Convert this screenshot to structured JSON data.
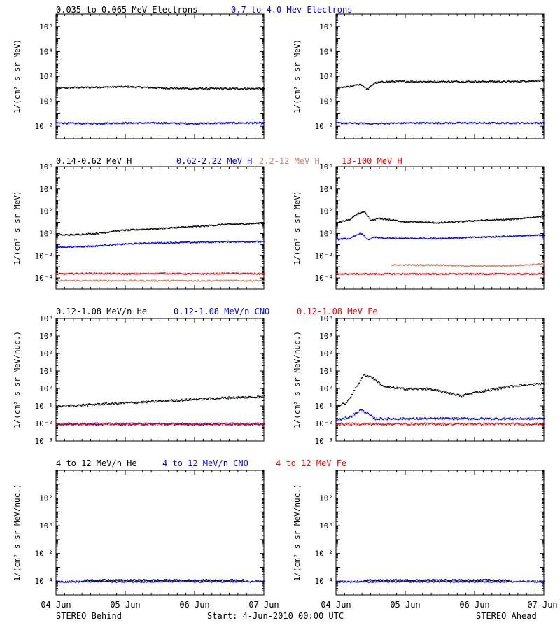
{
  "colors": {
    "black": "#000000",
    "blue": "#0000ff",
    "tan": "#c8826e",
    "red": "#ff0000"
  },
  "header_labels": [
    {
      "text": "0.035 to 0.065 MeV Electrons",
      "color": "#000000"
    },
    {
      "text": "0.7 to 4.0 Mev Electrons",
      "color": "#0000ff"
    },
    {
      "text": "0.14-0.62 MeV H",
      "color": "#000000"
    },
    {
      "text": "0.62-2.22 MeV H",
      "color": "#0000ff"
    },
    {
      "text": "2.2-12 MeV H",
      "color": "#c8826e"
    },
    {
      "text": "13-100 MeV H",
      "color": "#ff0000"
    },
    {
      "text": "0.12-1.08 MeV/n He",
      "color": "#000000"
    },
    {
      "text": "0.12-1.08 MeV/n CNO",
      "color": "#0000ff"
    },
    {
      "text": "0.12-1.08 MeV Fe",
      "color": "#ff0000"
    },
    {
      "text": "4 to 12 MeV/n He",
      "color": "#000000"
    },
    {
      "text": "4 to 12 MeV/n CNO",
      "color": "#0000ff"
    },
    {
      "text": "4 to 12 MeV Fe",
      "color": "#ff0000"
    }
  ],
  "x_tick_labels": [
    "04-Jun",
    "05-Jun",
    "06-Jun",
    "07-Jun"
  ],
  "footer": {
    "left": "STEREO Behind",
    "center": "Start:  4-Jun-2010 00:00 UTC",
    "right": "STEREO Ahead"
  },
  "chart_data": [
    {
      "type": "scatter",
      "panel": "electrons-behind",
      "yscale": "log",
      "ylabel": "1/(cm² s sr MeV)",
      "xlim": [
        0,
        3
      ],
      "ylim_exp": [
        -3,
        7
      ],
      "ytick_exps": [
        -2,
        0,
        2,
        4,
        6
      ],
      "series": [
        {
          "name": "0.035 to 0.065 MeV Electrons",
          "color": "#000000",
          "x": [
            0,
            0.5,
            1.0,
            1.5,
            2.0,
            2.5,
            3.0
          ],
          "log_y": [
            1.1,
            1.15,
            1.2,
            1.1,
            1.05,
            1.05,
            1.05
          ]
        },
        {
          "name": "0.7 to 4.0 Mev Electrons",
          "color": "#0000ff",
          "x": [
            0,
            0.5,
            1.0,
            1.5,
            2.0,
            2.5,
            3.0
          ],
          "log_y": [
            -1.7,
            -1.75,
            -1.7,
            -1.7,
            -1.75,
            -1.7,
            -1.7
          ]
        }
      ]
    },
    {
      "type": "scatter",
      "panel": "electrons-ahead",
      "yscale": "log",
      "ylabel": "1/(cm² s sr MeV)",
      "xlim": [
        0,
        3
      ],
      "ylim_exp": [
        -3,
        7
      ],
      "ytick_exps": [
        -2,
        0,
        2,
        4,
        6
      ],
      "series": [
        {
          "name": "0.035 to 0.065 MeV Electrons",
          "color": "#000000",
          "x": [
            0,
            0.2,
            0.35,
            0.45,
            0.55,
            0.7,
            1.0,
            1.5,
            2.0,
            2.5,
            3.0
          ],
          "log_y": [
            1.1,
            1.2,
            1.4,
            1.0,
            1.5,
            1.6,
            1.62,
            1.6,
            1.62,
            1.6,
            1.7
          ]
        },
        {
          "name": "0.7 to 4.0 Mev Electrons",
          "color": "#0000ff",
          "x": [
            0,
            0.5,
            1.0,
            1.5,
            2.0,
            2.5,
            3.0
          ],
          "log_y": [
            -1.7,
            -1.75,
            -1.7,
            -1.7,
            -1.7,
            -1.7,
            -1.7
          ]
        }
      ]
    },
    {
      "type": "scatter",
      "panel": "protons-behind",
      "yscale": "log",
      "ylabel": "1/(cm² s sr MeV)",
      "xlim": [
        0,
        3
      ],
      "ylim_exp": [
        -5,
        6
      ],
      "ytick_exps": [
        -4,
        -2,
        0,
        2,
        4,
        6
      ],
      "series": [
        {
          "name": "0.14-0.62 MeV H",
          "color": "#000000",
          "x": [
            0,
            0.3,
            0.6,
            0.9,
            1.2,
            1.5,
            1.8,
            2.1,
            2.4,
            2.7,
            3.0
          ],
          "log_y": [
            -0.1,
            -0.05,
            0.05,
            0.3,
            0.4,
            0.5,
            0.6,
            0.7,
            0.85,
            0.9,
            1.0
          ]
        },
        {
          "name": "0.62-2.22 MeV H",
          "color": "#0000ff",
          "x": [
            0,
            0.5,
            1.0,
            1.5,
            2.0,
            2.5,
            3.0
          ],
          "log_y": [
            -1.2,
            -1.1,
            -0.9,
            -0.8,
            -0.75,
            -0.7,
            -0.7
          ]
        },
        {
          "name": "2.2-12 MeV H",
          "color": "#c8826e",
          "x": [
            0,
            0.5,
            1.0,
            1.5,
            2.0,
            2.5,
            3.0
          ],
          "log_y": [
            -4.2,
            -4.2,
            -4.2,
            -4.2,
            -4.2,
            -4.2,
            -4.2
          ]
        },
        {
          "name": "13-100 MeV H",
          "color": "#ff0000",
          "x": [
            0,
            0.5,
            1.0,
            1.5,
            2.0,
            2.5,
            3.0
          ],
          "log_y": [
            -3.6,
            -3.55,
            -3.6,
            -3.55,
            -3.6,
            -3.55,
            -3.6
          ]
        }
      ]
    },
    {
      "type": "scatter",
      "panel": "protons-ahead",
      "yscale": "log",
      "ylabel": "1/(cm² s sr MeV)",
      "xlim": [
        0,
        3
      ],
      "ylim_exp": [
        -5,
        6
      ],
      "ytick_exps": [
        -4,
        -2,
        0,
        2,
        4,
        6
      ],
      "series": [
        {
          "name": "0.14-0.62 MeV H",
          "color": "#000000",
          "x": [
            0,
            0.2,
            0.3,
            0.4,
            0.5,
            0.6,
            1.0,
            1.5,
            2.0,
            2.5,
            3.0
          ],
          "log_y": [
            1.0,
            1.3,
            1.8,
            2.0,
            1.2,
            1.4,
            1.1,
            1.0,
            1.2,
            1.3,
            1.6
          ]
        },
        {
          "name": "0.62-2.22 MeV H",
          "color": "#0000ff",
          "x": [
            0,
            0.2,
            0.35,
            0.45,
            0.55,
            0.7,
            1.0,
            1.5,
            2.0,
            2.5,
            3.0
          ],
          "log_y": [
            -0.5,
            -0.4,
            0.1,
            -0.5,
            -0.3,
            -0.4,
            -0.4,
            -0.4,
            -0.3,
            -0.2,
            -0.1
          ]
        },
        {
          "name": "2.2-12 MeV H",
          "color": "#c8826e",
          "x": [
            0.8,
            1.0,
            1.5,
            2.0,
            2.5,
            3.0
          ],
          "log_y": [
            -2.8,
            -2.8,
            -2.8,
            -2.9,
            -2.85,
            -2.7
          ]
        },
        {
          "name": "13-100 MeV H",
          "color": "#ff0000",
          "x": [
            0,
            0.5,
            1.0,
            1.5,
            2.0,
            2.5,
            3.0
          ],
          "log_y": [
            -3.6,
            -3.6,
            -3.6,
            -3.6,
            -3.6,
            -3.6,
            -3.6
          ]
        }
      ]
    },
    {
      "type": "scatter",
      "panel": "ions-low-behind",
      "yscale": "log",
      "ylabel": "1/(cm² s sr MeV/nuc.)",
      "xlim": [
        0,
        3
      ],
      "ylim_exp": [
        -3,
        4
      ],
      "ytick_exps": [
        -3,
        -2,
        -1,
        0,
        1,
        2,
        3,
        4
      ],
      "series": [
        {
          "name": "0.12-1.08 MeV/n He",
          "color": "#000000",
          "x": [
            0,
            0.5,
            1.0,
            1.5,
            2.0,
            2.5,
            3.0
          ],
          "log_y": [
            -1.0,
            -0.9,
            -0.8,
            -0.7,
            -0.6,
            -0.5,
            -0.45
          ]
        },
        {
          "name": "0.12-1.08 MeV/n CNO",
          "color": "#0000ff",
          "x": [
            0,
            0.5,
            1.0,
            1.5,
            2.0,
            2.5,
            3.0
          ],
          "log_y": [
            -2.0,
            -2.0,
            -2.0,
            -2.0,
            -2.0,
            -2.0,
            -2.0
          ]
        },
        {
          "name": "0.12-1.08 MeV Fe",
          "color": "#ff0000",
          "x": [
            0,
            0.5,
            1.0,
            1.5,
            2.0,
            2.5,
            3.0
          ],
          "log_y": [
            -2.0,
            -2.0,
            -2.0,
            -2.0,
            -2.0,
            -2.0,
            -2.0
          ]
        }
      ]
    },
    {
      "type": "scatter",
      "panel": "ions-low-ahead",
      "yscale": "log",
      "ylabel": "1/(cm² s sr MeV/nuc.)",
      "xlim": [
        0,
        3
      ],
      "ylim_exp": [
        -3,
        4
      ],
      "ytick_exps": [
        -3,
        -2,
        -1,
        0,
        1,
        2,
        3,
        4
      ],
      "series": [
        {
          "name": "0.12-1.08 MeV/n He",
          "color": "#000000",
          "x": [
            0,
            0.15,
            0.3,
            0.4,
            0.5,
            0.7,
            1.0,
            1.3,
            1.6,
            1.8,
            2.0,
            2.3,
            2.6,
            3.0
          ],
          "log_y": [
            -1.0,
            -0.8,
            0.2,
            0.8,
            0.7,
            0.1,
            0.0,
            0.0,
            -0.2,
            -0.4,
            -0.2,
            0.0,
            0.2,
            0.3
          ]
        },
        {
          "name": "0.12-1.08 MeV/n CNO",
          "color": "#0000ff",
          "x": [
            0,
            0.2,
            0.35,
            0.45,
            0.55,
            1.0,
            2.0,
            3.0
          ],
          "log_y": [
            -1.8,
            -1.6,
            -1.2,
            -1.4,
            -1.7,
            -1.7,
            -1.7,
            -1.7
          ]
        },
        {
          "name": "0.12-1.08 MeV Fe",
          "color": "#ff0000",
          "x": [
            0,
            0.5,
            1.0,
            1.5,
            2.0,
            2.5,
            3.0
          ],
          "log_y": [
            -2.0,
            -2.0,
            -2.0,
            -2.0,
            -2.0,
            -2.0,
            -2.0
          ]
        }
      ]
    },
    {
      "type": "scatter",
      "panel": "ions-high-behind",
      "yscale": "log",
      "ylabel": "1/(cm² s sr MeV/nuc.)",
      "xlim": [
        0,
        3
      ],
      "ylim_exp": [
        -5,
        4
      ],
      "ytick_exps": [
        -4,
        -2,
        0,
        2
      ],
      "series": [
        {
          "name": "4 to 12 MeV/n He",
          "color": "#000000",
          "x": [
            0.4,
            0.45,
            1.2,
            1.25,
            2.2,
            2.7
          ],
          "log_y": [
            -3.9,
            -3.9,
            -3.9,
            -3.9,
            -3.9,
            -3.9
          ]
        },
        {
          "name": "4 to 12 MeV/n CNO",
          "color": "#0000ff",
          "x": [
            0,
            0.5,
            1.0,
            1.5,
            2.0,
            2.5,
            3.0
          ],
          "log_y": [
            -4.0,
            -4.0,
            -4.0,
            -4.0,
            -4.0,
            -4.0,
            -4.0
          ]
        }
      ]
    },
    {
      "type": "scatter",
      "panel": "ions-high-ahead",
      "yscale": "log",
      "ylabel": "1/(cm² s sr MeV/nuc.)",
      "xlim": [
        0,
        3
      ],
      "ylim_exp": [
        -5,
        4
      ],
      "ytick_exps": [
        -4,
        -2,
        0,
        2
      ],
      "series": [
        {
          "name": "4 to 12 MeV/n He",
          "color": "#000000",
          "x": [
            0.4,
            1.5,
            1.55,
            2.5
          ],
          "log_y": [
            -3.9,
            -3.9,
            -3.9,
            -3.9
          ]
        },
        {
          "name": "4 to 12 MeV/n CNO",
          "color": "#0000ff",
          "x": [
            0,
            0.5,
            1.0,
            1.5,
            2.0,
            2.5,
            3.0
          ],
          "log_y": [
            -4.0,
            -4.0,
            -4.0,
            -4.0,
            -4.0,
            -4.0,
            -4.0
          ]
        }
      ]
    }
  ]
}
